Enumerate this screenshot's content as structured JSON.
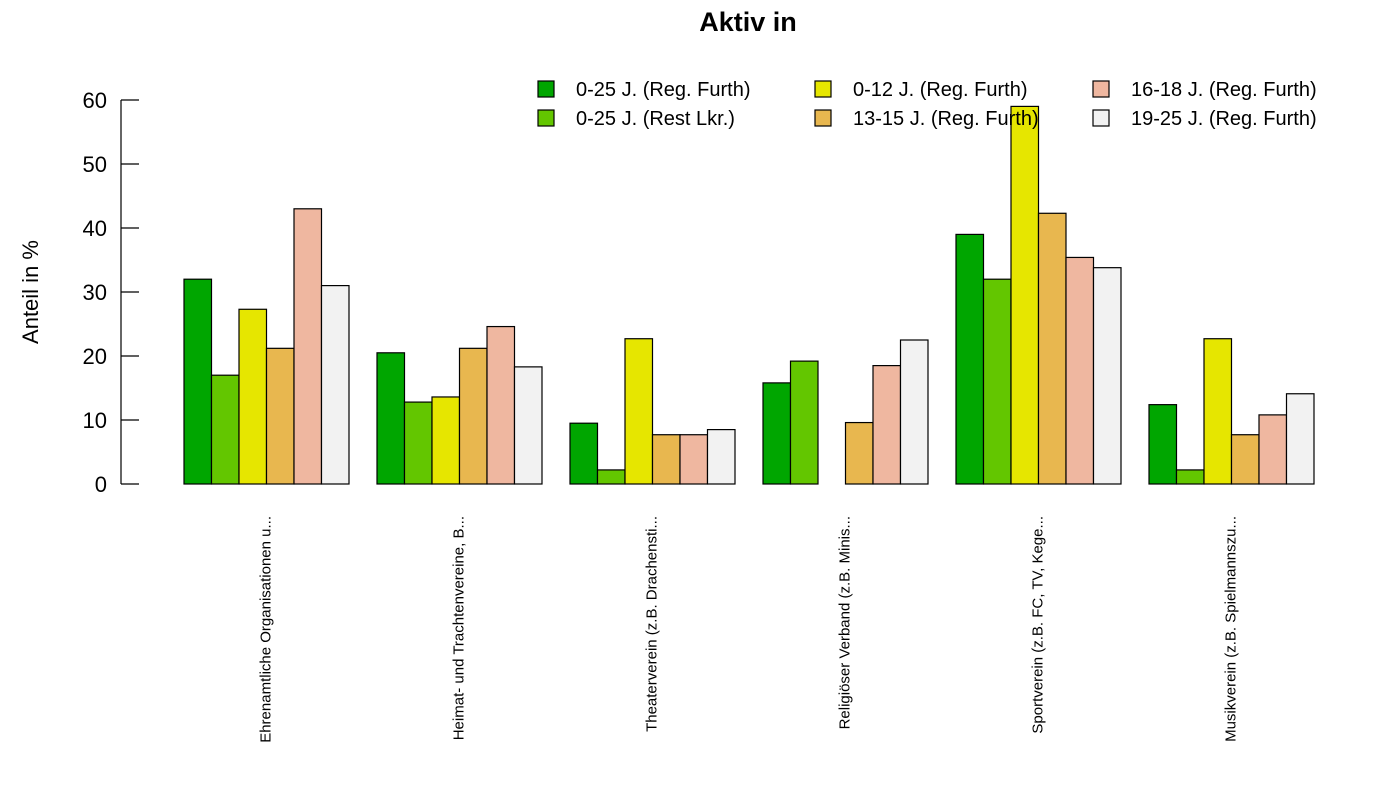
{
  "chart_data": {
    "type": "bar",
    "title": "Aktiv in",
    "xlabel": "",
    "ylabel": "Anteil in %",
    "ylim": [
      0,
      60
    ],
    "yticks": [
      0,
      10,
      20,
      30,
      40,
      50,
      60
    ],
    "grid": false,
    "legend_position": "top-right",
    "categories": [
      "Ehrenamtliche Organisationen u...",
      "Heimat- und Trachtenvereine, B...",
      "Theaterverein (z.B. Drachensti...",
      "Religiöser Verband (z.B. Minis...",
      "Sportverein (z.B. FC, TV, Kege...",
      "Musikverein (z.B. Spielmannszu..."
    ],
    "series": [
      {
        "name": "0-25 J. (Reg. Furth)",
        "color": "#00A600",
        "values": [
          32,
          20.5,
          9.5,
          15.8,
          39,
          12.4
        ]
      },
      {
        "name": "0-25 J. (Rest Lkr.)",
        "color": "#63C600",
        "values": [
          17,
          12.8,
          2.2,
          19.2,
          32,
          2.2
        ]
      },
      {
        "name": "0-12 J. (Reg. Furth)",
        "color": "#E6E600",
        "values": [
          27.3,
          13.6,
          22.7,
          0,
          59,
          22.7
        ]
      },
      {
        "name": "13-15 J. (Reg. Furth)",
        "color": "#E8B74F",
        "values": [
          21.2,
          21.2,
          7.7,
          9.6,
          42.3,
          7.7
        ]
      },
      {
        "name": "16-18 J. (Reg. Furth)",
        "color": "#EFB7A0",
        "values": [
          43,
          24.6,
          7.7,
          18.5,
          35.4,
          10.8
        ]
      },
      {
        "name": "19-25 J. (Reg. Furth)",
        "color": "#F2F2F2",
        "values": [
          31,
          18.3,
          8.5,
          22.5,
          33.8,
          14.1
        ]
      }
    ]
  }
}
